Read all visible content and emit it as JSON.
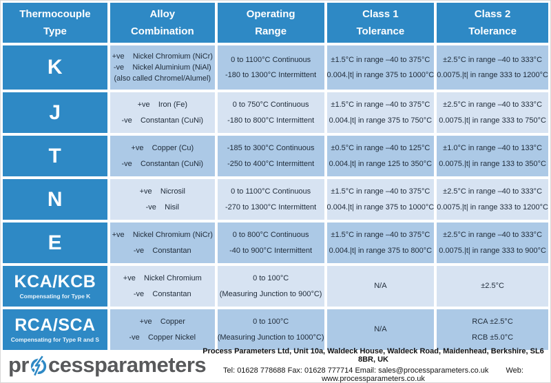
{
  "colors": {
    "header_blue": "#2e89c5",
    "row_light": "#d7e3f2",
    "row_medium": "#acc9e6",
    "logo_dark_gray": "#58595b",
    "logo_light_gray": "#a6a8ab"
  },
  "headers": [
    {
      "line1": "Thermocouple",
      "line2": "Type"
    },
    {
      "line1": "Alloy",
      "line2": "Combination"
    },
    {
      "line1": "Operating",
      "line2": "Range"
    },
    {
      "line1": "Class 1",
      "line2": "Tolerance"
    },
    {
      "line1": "Class 2",
      "line2": "Tolerance"
    }
  ],
  "rows": [
    {
      "type": "K",
      "subtitle": "",
      "alloy": [
        "+ve    Nickel Chromium (NiCr)",
        "-ve    Nickel Aluminium (NiAl)",
        "(also called Chromel/Alumel)"
      ],
      "range": [
        "0 to 1100°C Continuous",
        "-180 to 1300°C Intermittent"
      ],
      "class1": [
        "±1.5°C in range –40 to 375°C",
        "0.004.|t| in range 375 to 1000°C"
      ],
      "class2": [
        "±2.5°C in range –40 to 333°C",
        "0.0075.|t| in range 333 to 1200°C"
      ]
    },
    {
      "type": "J",
      "subtitle": "",
      "alloy": [
        "+ve    Iron (Fe)",
        "-ve    Constantan (CuNi)"
      ],
      "range": [
        "0 to 750°C Continuous",
        "-180 to 800°C Intermittent"
      ],
      "class1": [
        "±1.5°C in range –40 to 375°C",
        "0.004.|t| in range 375 to 750°C"
      ],
      "class2": [
        "±2.5°C in range –40 to 333°C",
        "0.0075.|t| in range 333 to 750°C"
      ]
    },
    {
      "type": "T",
      "subtitle": "",
      "alloy": [
        "+ve    Copper (Cu)",
        "-ve    Constantan (CuNi)"
      ],
      "range": [
        "-185 to 300°C Continuous",
        "-250 to 400°C Intermittent"
      ],
      "class1": [
        "±0.5°C in range –40 to 125°C",
        "0.004.|t| in range 125 to 350°C"
      ],
      "class2": [
        "±1.0°C in range –40 to 133°C",
        "0.0075.|t| in range 133 to 350°C"
      ]
    },
    {
      "type": "N",
      "subtitle": "",
      "alloy": [
        "+ve    Nicrosil",
        "-ve    Nisil"
      ],
      "range": [
        "0 to 1100°C Continuous",
        "-270 to 1300°C Intermittent"
      ],
      "class1": [
        "±1.5°C in range –40 to 375°C",
        "0.004.|t| in range 375 to 1000°C"
      ],
      "class2": [
        "±2.5°C in range –40 to 333°C",
        "0.0075.|t| in range 333 to 1200°C"
      ]
    },
    {
      "type": "E",
      "subtitle": "",
      "alloy": [
        "+ve    Nickel Chromium (NiCr)",
        "-ve    Constantan"
      ],
      "range": [
        "0 to 800°C Continuous",
        "-40 to 900°C Intermittent"
      ],
      "class1": [
        "±1.5°C in range –40 to 375°C",
        "0.004.|t| in range 375 to 800°C"
      ],
      "class2": [
        "±2.5°C in range –40 to 333°C",
        "0.0075.|t| in range 333 to 900°C"
      ]
    },
    {
      "type": "KCA/KCB",
      "subtitle": "Compensating for Type K",
      "alloy": [
        "+ve    Nickel Chromium",
        "-ve    Constantan"
      ],
      "range": [
        "0 to 100°C",
        "(Measuring Junction to 900°C)"
      ],
      "class1": [
        "N/A"
      ],
      "class2": [
        "±2.5°C"
      ]
    },
    {
      "type": "RCA/SCA",
      "subtitle": "Compensating for Type R and S",
      "alloy": [
        "+ve    Copper",
        "-ve    Copper Nickel"
      ],
      "range": [
        "0 to 100°C",
        "(Measuring Junction to 1000°C)"
      ],
      "class1": [
        "N/A"
      ],
      "class2": [
        "RCA ±2.5°C",
        "RCB ±5.0°C"
      ]
    }
  ],
  "footer": {
    "logo_part1": "pr",
    "logo_part2": "cess",
    "logo_part3": "parameters",
    "address": "Process Parameters Ltd, Unit 10a, Waldeck House, Waldeck Road, Maidenhead, Berkshire, SL6 8BR, UK",
    "contact": "Tel: 01628 778688 Fax: 01628 777714 Email: sales@processparameters.co.uk",
    "web": "Web: www.processparameters.co.uk"
  }
}
